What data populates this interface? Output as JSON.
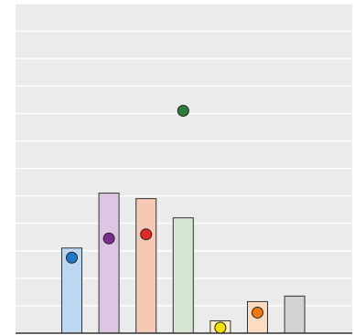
{
  "chart_data": {
    "type": "bar",
    "title": "",
    "xlabel": "",
    "ylabel": "",
    "ylim": [
      0,
      12
    ],
    "grid": true,
    "legend": "none",
    "categories": [
      "",
      "",
      "",
      "",
      "",
      "",
      ""
    ],
    "bars": [
      {
        "value": 3.1,
        "fill": "#bcd8f0",
        "stroke": "#333333"
      },
      {
        "value": 5.1,
        "fill": "#dcc6e4",
        "stroke": "#333333"
      },
      {
        "value": 4.9,
        "fill": "#f5c9b4",
        "stroke": "#333333"
      },
      {
        "value": 4.2,
        "fill": "#d6e6d2",
        "stroke": "#333333"
      },
      {
        "value": 0.45,
        "fill": "#fcefc2",
        "stroke": "#333333"
      },
      {
        "value": 1.15,
        "fill": "#fbdcc0",
        "stroke": "#333333"
      },
      {
        "value": 1.35,
        "fill": "#d2d2d2",
        "stroke": "#333333"
      }
    ],
    "points": [
      {
        "category_index": 0,
        "value": 2.75,
        "color": "#1f78c8"
      },
      {
        "category_index": 1,
        "value": 3.45,
        "color": "#7b2d8c"
      },
      {
        "category_index": 2,
        "value": 3.6,
        "color": "#e02a2a"
      },
      {
        "category_index": 3,
        "value": 8.1,
        "color": "#2e7d3a"
      },
      {
        "category_index": 4,
        "value": 0.2,
        "color": "#f5e000"
      },
      {
        "category_index": 5,
        "value": 0.75,
        "color": "#f07a10"
      }
    ],
    "colors": {
      "background": "#ebebeb",
      "gridline": "#ffffff",
      "baseline": "#333333"
    }
  }
}
